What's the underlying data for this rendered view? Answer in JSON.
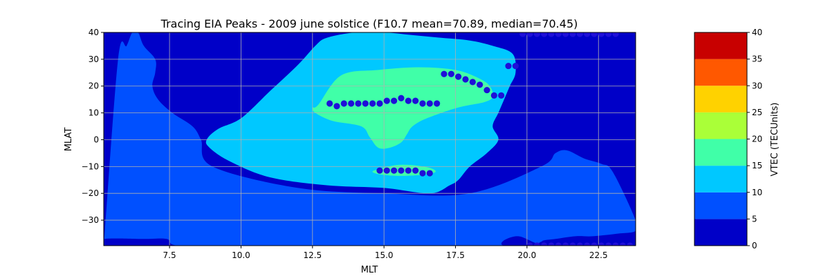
{
  "chart_data": {
    "type": "contour",
    "title": "Tracing EIA Peaks - 2009 june solstice (F10.7 mean=70.89, median=70.45)",
    "xlabel": "MLT",
    "ylabel": "MLAT",
    "xlim": [
      5.2,
      23.8
    ],
    "ylim": [
      -39.5,
      40
    ],
    "x_ticks": [
      7.5,
      10.0,
      12.5,
      15.0,
      17.5,
      20.0,
      22.5
    ],
    "x_tick_labels": [
      "7.5",
      "10.0",
      "12.5",
      "15.0",
      "17.5",
      "20.0",
      "22.5"
    ],
    "y_ticks": [
      -30,
      -20,
      -10,
      0,
      10,
      20,
      30,
      40
    ],
    "y_tick_labels": [
      "−30",
      "−20",
      "−10",
      "0",
      "10",
      "20",
      "30",
      "40"
    ],
    "grid": true,
    "colorbar": {
      "label": "VTEC (TECUnits)",
      "levels": [
        0,
        5,
        10,
        15,
        20,
        25,
        30,
        35,
        40
      ],
      "tick_labels": [
        "0",
        "5",
        "10",
        "15",
        "20",
        "25",
        "30",
        "35",
        "40"
      ],
      "colors": [
        "#0000c8",
        "#0050ff",
        "#00c8ff",
        "#40ffa8",
        "#aaff38",
        "#ffd200",
        "#ff5800",
        "#c80000"
      ]
    },
    "bands": [
      {
        "level_min": 5,
        "level_max": 10,
        "color": "#0050ff",
        "x": [
          6.4,
          6.6,
          7.0,
          7.0,
          6.9,
          7.1,
          7.6,
          8.3,
          8.6,
          9.0,
          12.0,
          15.0,
          18.0,
          20.5,
          21.0,
          21.4,
          22.0,
          22.6,
          23.0,
          23.8,
          23.8,
          23.2,
          22.3,
          21.7,
          21.0,
          20.6,
          20.5,
          20.3,
          19.7,
          19.2,
          19.2,
          20.2,
          20.8,
          21.2,
          22.0,
          22.0,
          20.0,
          15.0,
          10.0,
          7.8,
          7.4,
          6.6,
          5.2,
          5.2,
          5.7,
          6.0,
          6.2
        ],
        "y": [
          40,
          35,
          30,
          25,
          20,
          15,
          10,
          5,
          0,
          -10,
          -18,
          -20,
          -20,
          -10,
          -5,
          -4,
          -7,
          -9,
          -12,
          -30,
          -34,
          -35,
          -36,
          -36,
          -37,
          -37.5,
          -38,
          -38.5,
          -36,
          -37.5,
          -39.5,
          -39.5,
          -39.5,
          -39.5,
          -39.5,
          -39.5,
          -39.5,
          -39.5,
          -39.5,
          -39.5,
          -37,
          -37,
          -37,
          -39.5,
          30,
          35,
          40
        ]
      },
      {
        "level_min": 10,
        "level_max": 15,
        "color": "#00c8ff",
        "x": [
          8.8,
          9.2,
          10.0,
          11.0,
          12.0,
          12.6,
          13.0,
          14.0,
          15.0,
          16.0,
          17.0,
          18.0,
          18.8,
          19.5,
          19.6,
          19.4,
          19.2,
          19.0,
          18.8,
          19.0,
          18.6,
          18.0,
          17.6,
          17.3,
          16.6,
          15.0,
          13.0,
          11.0,
          9.6,
          8.9
        ],
        "y": [
          0,
          4,
          8,
          18,
          28,
          35,
          38,
          40,
          40,
          39,
          38,
          37,
          35,
          32,
          25,
          20,
          15,
          10,
          5,
          0,
          -5,
          -10,
          -15,
          -17,
          -20,
          -18,
          -17,
          -14,
          -8,
          -3
        ]
      },
      {
        "level_min": 15,
        "level_max": 20,
        "color": "#40ffa8",
        "x": [
          12.7,
          13.5,
          14.8,
          16.2,
          17.5,
          18.3,
          18.7,
          18.8,
          18.5,
          17.6,
          16.5,
          16.0,
          15.8,
          15.6,
          15.2,
          14.8,
          14.5,
          14.2,
          13.2,
          12.6,
          12.5
        ],
        "y": [
          13,
          24,
          26,
          27,
          26,
          23,
          20,
          16,
          14,
          12,
          8,
          5,
          2,
          -1,
          -3,
          -3,
          1,
          5,
          7,
          10,
          12
        ]
      },
      {
        "level_min": 15,
        "level_max": 20,
        "color": "#40ffa8",
        "x": [
          14.8,
          15.4,
          16.0,
          16.6,
          16.8,
          16.4,
          15.6,
          14.9,
          14.6
        ],
        "y": [
          -11,
          -9.5,
          -9.5,
          -10.5,
          -12,
          -13,
          -13.5,
          -13,
          -12
        ]
      }
    ],
    "series": [
      {
        "x": [
          13.1,
          13.35,
          13.6,
          13.85,
          14.1,
          14.35,
          14.6,
          14.85,
          15.1,
          15.35,
          15.6,
          15.85,
          16.1,
          16.35,
          16.6,
          16.85
        ],
        "y": [
          13.5,
          12.5,
          13.5,
          13.5,
          13.5,
          13.5,
          13.5,
          13.5,
          14.5,
          14.5,
          15.5,
          14.5,
          14.5,
          13.5,
          13.5,
          13.5
        ]
      },
      {
        "x": [
          17.1,
          17.35,
          17.6,
          17.85,
          18.1,
          18.35,
          18.6,
          18.85,
          19.1
        ],
        "y": [
          24.5,
          24.5,
          23.5,
          22.5,
          21.5,
          20.5,
          18.5,
          16.5,
          16.5
        ]
      },
      {
        "x": [
          19.35,
          19.6
        ],
        "y": [
          27.5,
          27.5
        ]
      },
      {
        "x": [
          14.85,
          15.1,
          15.35,
          15.6,
          15.85,
          16.1,
          16.35,
          16.6
        ],
        "y": [
          -11.5,
          -11.5,
          -11.5,
          -11.5,
          -11.5,
          -11.5,
          -12.5,
          -12.5
        ]
      },
      {
        "x": [
          19.85,
          20.1,
          20.35,
          20.6,
          20.85,
          21.1,
          21.35,
          21.6,
          21.85,
          22.1,
          22.35,
          22.6,
          22.85,
          23.1
        ],
        "y": [
          39.5,
          39.5,
          39.5,
          39.5,
          39.5,
          39.5,
          39.5,
          39.5,
          39.5,
          39.5,
          39.5,
          39.5,
          39.5,
          39.5
        ]
      },
      {
        "x": [
          20.1,
          20.35,
          20.6,
          20.85,
          21.1,
          21.35,
          21.6,
          21.85,
          22.1,
          22.35,
          22.6,
          22.85,
          23.1,
          23.35,
          23.6
        ],
        "y": [
          -39.5,
          -39.5,
          -39.5,
          -39.5,
          -39.5,
          -39.5,
          -39.5,
          -39.5,
          -39.5,
          -39.5,
          -39.5,
          -39.5,
          -39.5,
          -39.5,
          -39.5
        ]
      }
    ],
    "marker_color": "#1f0fd8"
  }
}
